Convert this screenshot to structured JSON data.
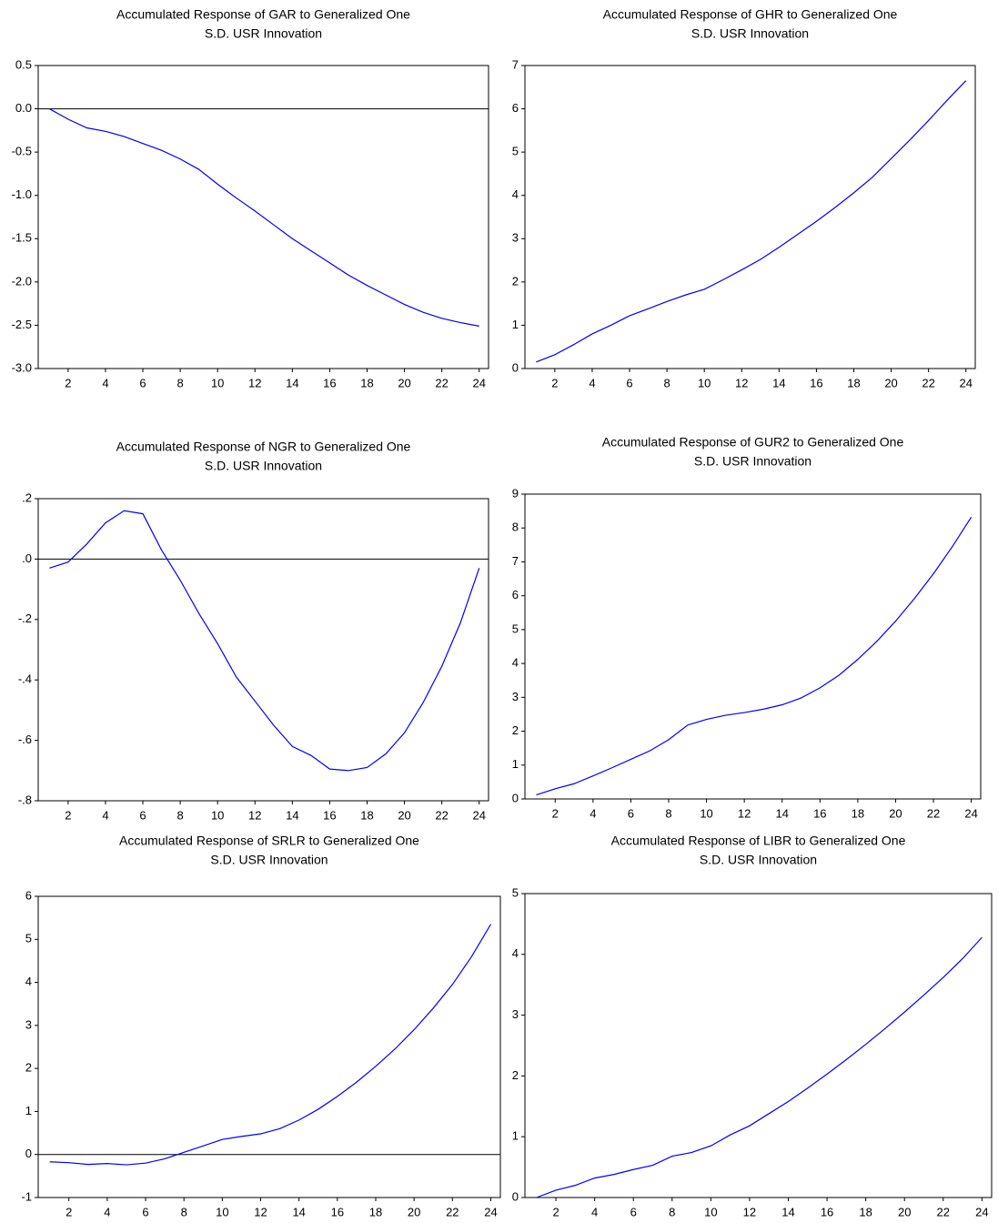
{
  "chart_data": [
    {
      "type": "line",
      "title": [
        "Accumulated Response of GAR to Generalized One",
        "S.D. USR Innovation"
      ],
      "x": [
        1,
        2,
        3,
        4,
        5,
        6,
        7,
        8,
        9,
        10,
        11,
        12,
        13,
        14,
        15,
        16,
        17,
        18,
        19,
        20,
        21,
        22,
        23,
        24
      ],
      "values": [
        0.0,
        -0.12,
        -0.22,
        -0.26,
        -0.32,
        -0.4,
        -0.48,
        -0.58,
        -0.7,
        -0.87,
        -1.03,
        -1.18,
        -1.34,
        -1.5,
        -1.64,
        -1.78,
        -1.92,
        -2.04,
        -2.15,
        -2.26,
        -2.35,
        -2.42,
        -2.47,
        -2.51
      ],
      "color": "#0000ff",
      "xlim": [
        0.4,
        24.5
      ],
      "xticks": [
        2,
        4,
        6,
        8,
        10,
        12,
        14,
        16,
        18,
        20,
        22,
        24
      ],
      "ylim": [
        -3.0,
        0.5
      ],
      "yticks": [
        {
          "value": -3.0,
          "label": "-3.0"
        },
        {
          "value": -2.5,
          "label": "-2.5"
        },
        {
          "value": -2.0,
          "label": "-2.0"
        },
        {
          "value": -1.5,
          "label": "-1.5"
        },
        {
          "value": -1.0,
          "label": "-1.0"
        },
        -0.5,
        {
          "value": 0,
          "label": "0.0"
        },
        0.5
      ],
      "zero_line": true
    },
    {
      "type": "line",
      "title": [
        "Accumulated Response of GHR to Generalized One",
        "S.D. USR Innovation"
      ],
      "x": [
        1,
        2,
        3,
        4,
        5,
        6,
        7,
        8,
        9,
        10,
        11,
        12,
        13,
        14,
        15,
        16,
        17,
        18,
        19,
        20,
        21,
        22,
        23,
        24
      ],
      "values": [
        0.15,
        0.32,
        0.55,
        0.8,
        1.0,
        1.22,
        1.38,
        1.55,
        1.7,
        1.83,
        2.05,
        2.28,
        2.52,
        2.8,
        3.1,
        3.4,
        3.72,
        4.06,
        4.42,
        4.85,
        5.28,
        5.73,
        6.2,
        6.65
      ],
      "color": "#0000ff",
      "xlim": [
        0.4,
        24.5
      ],
      "xticks": [
        2,
        4,
        6,
        8,
        10,
        12,
        14,
        16,
        18,
        20,
        22,
        24
      ],
      "ylim": [
        0,
        7
      ],
      "yticks": [
        0,
        1,
        2,
        3,
        4,
        5,
        6,
        7
      ],
      "zero_line": false
    },
    {
      "type": "line",
      "title": [
        "Accumulated Response of NGR to Generalized One",
        "S.D. USR Innovation"
      ],
      "x": [
        1,
        2,
        3,
        4,
        5,
        6,
        7,
        8,
        9,
        10,
        11,
        12,
        13,
        14,
        15,
        16,
        17,
        18,
        19,
        20,
        21,
        22,
        23,
        24
      ],
      "values": [
        -0.03,
        -0.01,
        0.05,
        0.12,
        0.16,
        0.15,
        0.03,
        -0.07,
        -0.18,
        -0.28,
        -0.39,
        -0.47,
        -0.55,
        -0.62,
        -0.65,
        -0.695,
        -0.7,
        -0.69,
        -0.645,
        -0.575,
        -0.475,
        -0.355,
        -0.21,
        -0.03
      ],
      "color": "#0000ff",
      "xlim": [
        0.4,
        24.5
      ],
      "xticks": [
        2,
        4,
        6,
        8,
        10,
        12,
        14,
        16,
        18,
        20,
        22,
        24
      ],
      "ylim": [
        -0.8,
        0.2
      ],
      "yticks": [
        {
          "value": -0.8,
          "label": "-.8"
        },
        {
          "value": -0.6,
          "label": "-.6"
        },
        {
          "value": -0.4,
          "label": "-.4"
        },
        {
          "value": -0.2,
          "label": "-.2"
        },
        {
          "value": 0,
          "label": ".0"
        },
        {
          "value": 0.2,
          "label": ".2"
        }
      ],
      "zero_line": true
    },
    {
      "type": "line",
      "title": [
        "Accumulated Response of GUR2 to Generalized One",
        "S.D. USR Innovation"
      ],
      "x": [
        1,
        2,
        3,
        4,
        5,
        6,
        7,
        8,
        9,
        10,
        11,
        12,
        13,
        14,
        15,
        16,
        17,
        18,
        19,
        20,
        21,
        22,
        23,
        24
      ],
      "values": [
        0.12,
        0.3,
        0.45,
        0.68,
        0.92,
        1.17,
        1.42,
        1.75,
        2.18,
        2.35,
        2.47,
        2.55,
        2.65,
        2.78,
        2.98,
        3.28,
        3.65,
        4.12,
        4.65,
        5.25,
        5.92,
        6.65,
        7.45,
        8.32
      ],
      "color": "#0000ff",
      "xlim": [
        0.4,
        24.5
      ],
      "xticks": [
        2,
        4,
        6,
        8,
        10,
        12,
        14,
        16,
        18,
        20,
        22,
        24
      ],
      "ylim": [
        0,
        9
      ],
      "yticks": [
        0,
        1,
        2,
        3,
        4,
        5,
        6,
        7,
        8,
        9
      ],
      "zero_line": false
    },
    {
      "type": "line",
      "title": [
        "Accumulated Response of SRLR to Generalized One",
        "S.D. USR Innovation"
      ],
      "x": [
        1,
        2,
        3,
        4,
        5,
        6,
        7,
        8,
        9,
        10,
        11,
        12,
        13,
        14,
        15,
        16,
        17,
        18,
        19,
        20,
        21,
        22,
        23,
        24
      ],
      "values": [
        -0.17,
        -0.19,
        -0.23,
        -0.21,
        -0.24,
        -0.2,
        -0.1,
        0.05,
        0.2,
        0.35,
        0.42,
        0.48,
        0.6,
        0.8,
        1.05,
        1.35,
        1.68,
        2.05,
        2.45,
        2.9,
        3.4,
        3.95,
        4.6,
        5.35
      ],
      "color": "#0000ff",
      "xlim": [
        0.4,
        24.5
      ],
      "xticks": [
        2,
        4,
        6,
        8,
        10,
        12,
        14,
        16,
        18,
        20,
        22,
        24
      ],
      "ylim": [
        -1,
        6
      ],
      "yticks": [
        -1,
        0,
        1,
        2,
        3,
        4,
        5,
        6
      ],
      "zero_line": true
    },
    {
      "type": "line",
      "title": [
        "Accumulated Response of LIBR to Generalized One",
        "S.D. USR Innovation"
      ],
      "x": [
        1,
        2,
        3,
        4,
        5,
        6,
        7,
        8,
        9,
        10,
        11,
        12,
        13,
        14,
        15,
        16,
        17,
        18,
        19,
        20,
        21,
        22,
        23,
        24
      ],
      "values": [
        0.0,
        0.12,
        0.2,
        0.32,
        0.38,
        0.46,
        0.53,
        0.68,
        0.74,
        0.85,
        1.03,
        1.18,
        1.38,
        1.58,
        1.8,
        2.03,
        2.27,
        2.52,
        2.78,
        3.05,
        3.33,
        3.62,
        3.93,
        4.28
      ],
      "color": "#0000ff",
      "xlim": [
        0.4,
        24.5
      ],
      "xticks": [
        2,
        4,
        6,
        8,
        10,
        12,
        14,
        16,
        18,
        20,
        22,
        24
      ],
      "ylim": [
        0,
        5
      ],
      "yticks": [
        0,
        1,
        2,
        3,
        4,
        5
      ],
      "zero_line": false
    }
  ]
}
